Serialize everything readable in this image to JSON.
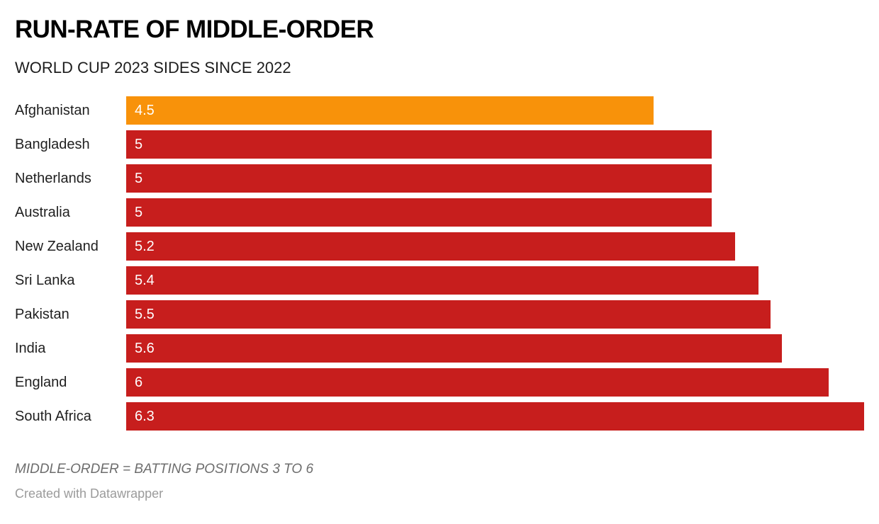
{
  "header": {
    "title": "RUN-RATE OF MIDDLE-ORDER",
    "subtitle": "WORLD CUP 2023 SIDES SINCE 2022"
  },
  "footer": {
    "note": "MIDDLE-ORDER = BATTING POSITIONS 3 TO 6",
    "credit": "Created with Datawrapper"
  },
  "colors": {
    "highlight_bar": "#f8920a",
    "base_bar": "#c71e1d",
    "value_text": "#ffffff",
    "label_text": "#1f1f1f",
    "note_text": "#6d6d6d",
    "credit_text": "#9b9b9b"
  },
  "chart_data": {
    "type": "bar",
    "orientation": "horizontal",
    "title": "RUN-RATE OF MIDDLE-ORDER",
    "subtitle": "WORLD CUP 2023 SIDES SINCE 2022",
    "categories": [
      "Afghanistan",
      "Bangladesh",
      "Netherlands",
      "Australia",
      "New Zealand",
      "Sri Lanka",
      "Pakistan",
      "India",
      "England",
      "South Africa"
    ],
    "values": [
      4.5,
      5,
      5,
      5,
      5.2,
      5.4,
      5.5,
      5.6,
      6,
      6.3
    ],
    "value_labels": [
      "4.5",
      "5",
      "5",
      "5",
      "5.2",
      "5.4",
      "5.5",
      "5.6",
      "6",
      "6.3"
    ],
    "bar_colors": [
      "#f8920a",
      "#c71e1d",
      "#c71e1d",
      "#c71e1d",
      "#c71e1d",
      "#c71e1d",
      "#c71e1d",
      "#c71e1d",
      "#c71e1d",
      "#c71e1d"
    ],
    "xlim": [
      0,
      6.3
    ],
    "grid": false,
    "legend": "none",
    "value_label_position": "inside-left",
    "note": "MIDDLE-ORDER = BATTING POSITIONS 3 TO 6",
    "credit": "Created with Datawrapper"
  }
}
